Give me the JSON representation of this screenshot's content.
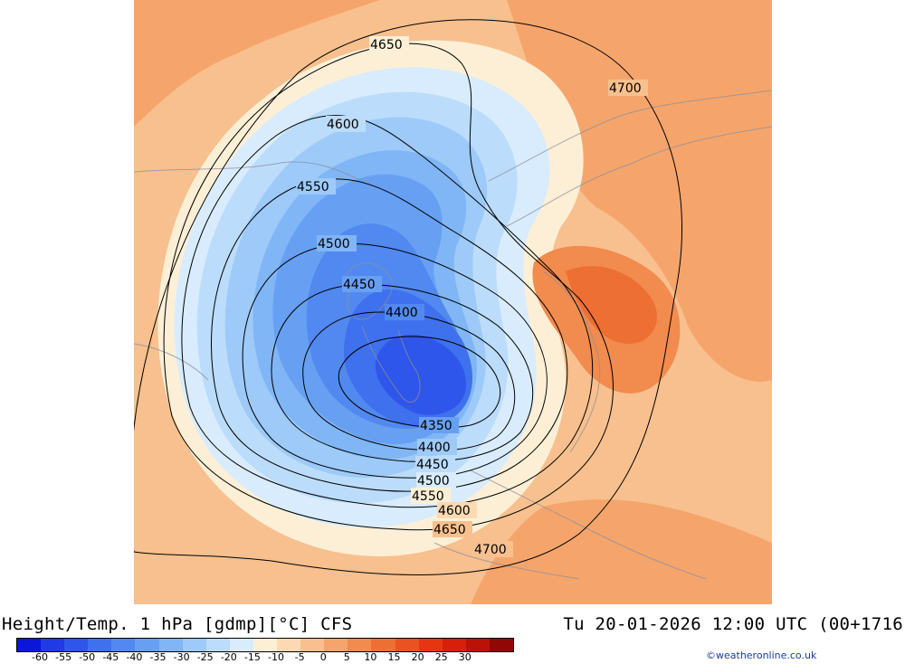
{
  "title": {
    "left": "Height/Temp. 1 hPa [gdmp][°C] CFS",
    "right": "Tu 20-01-2026 12:00 UTC (00+1716"
  },
  "credit": "©weatheronline.co.uk",
  "colorbar": {
    "colors": [
      "#0a16d8",
      "#1f3ae6",
      "#2f56ea",
      "#3f70ee",
      "#5289f0",
      "#67a0f3",
      "#80b6f6",
      "#9dcaf8",
      "#bcdcfb",
      "#d9ecfd",
      "#fdefd6",
      "#fbd9b2",
      "#f8c08e",
      "#f5a56c",
      "#f28b4e",
      "#ee6f33",
      "#ea5221",
      "#e83511",
      "#d81f0a",
      "#bb1106",
      "#8e0805"
    ],
    "tick_labels": [
      "-60",
      "-55",
      "-50",
      "-45",
      "-40",
      "-35",
      "-30",
      "-25",
      "-20",
      "-15",
      "-10",
      "-5",
      "0",
      "5",
      "10",
      "15",
      "20",
      "25",
      "30"
    ]
  },
  "contour_labels": [
    {
      "text": "4650"
    },
    {
      "text": "4700"
    },
    {
      "text": "4600"
    },
    {
      "text": "4550"
    },
    {
      "text": "4500"
    },
    {
      "text": "4450"
    },
    {
      "text": "4400"
    },
    {
      "text": "4350"
    },
    {
      "text": "4400"
    },
    {
      "text": "4450"
    },
    {
      "text": "4500"
    },
    {
      "text": "4550"
    },
    {
      "text": "4600"
    },
    {
      "text": "4650"
    },
    {
      "text": "4700"
    }
  ]
}
